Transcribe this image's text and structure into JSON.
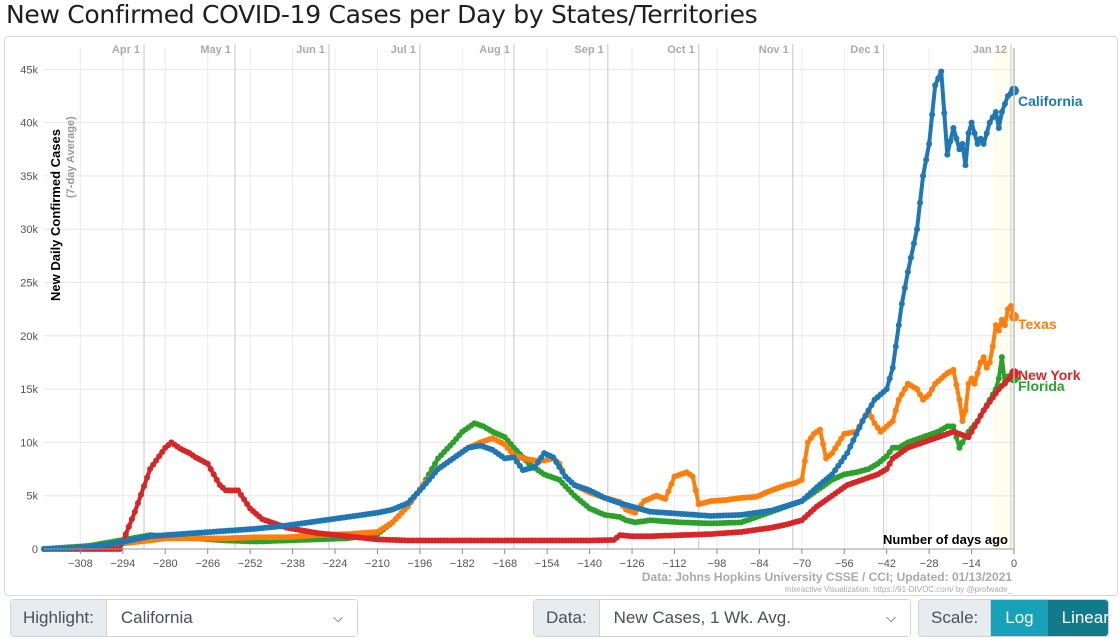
{
  "title": "New Confirmed COVID-19 Cases per Day by States/Territories",
  "colors": {
    "California": "#1f77b4",
    "Texas": "#ff7f0e",
    "New York": "#d62728",
    "Florida": "#2ca02c"
  },
  "chart_data": {
    "type": "line",
    "ylabel": "New Daily Confirmed Cases",
    "ylabel_sub": "(7-day Average)",
    "xlabel": "Number of days ago",
    "xlim": [
      -320,
      0
    ],
    "ylim": [
      0,
      47000
    ],
    "xticks": [
      -308,
      -294,
      -280,
      -266,
      -252,
      -238,
      -224,
      -210,
      -196,
      -182,
      -168,
      -154,
      -140,
      -126,
      -112,
      -98,
      -84,
      -70,
      -56,
      -42,
      -28,
      -14,
      0
    ],
    "yticks": [
      0,
      5000,
      10000,
      15000,
      20000,
      25000,
      30000,
      35000,
      40000,
      45000
    ],
    "ytick_labels": [
      "0",
      "5k",
      "10k",
      "15k",
      "20k",
      "25k",
      "30k",
      "35k",
      "40k",
      "45k"
    ],
    "month_markers": [
      {
        "label": "Apr 1",
        "day": -287
      },
      {
        "label": "May 1",
        "day": -257
      },
      {
        "label": "Jun 1",
        "day": -226
      },
      {
        "label": "Jul 1",
        "day": -196
      },
      {
        "label": "Aug 1",
        "day": -165
      },
      {
        "label": "Sep 1",
        "day": -134
      },
      {
        "label": "Oct 1",
        "day": -104
      },
      {
        "label": "Nov 1",
        "day": -73
      },
      {
        "label": "Dec 1",
        "day": -43
      },
      {
        "label": "Jan 12",
        "day": -1
      }
    ],
    "grid": true,
    "legend": "end-of-line labels",
    "series": [
      {
        "name": "California",
        "x": [
          -320,
          -305,
          -295,
          -285,
          -280,
          -270,
          -260,
          -250,
          -240,
          -230,
          -220,
          -210,
          -205,
          -200,
          -195,
          -190,
          -185,
          -180,
          -176,
          -172,
          -168,
          -165,
          -162,
          -158,
          -155,
          -152,
          -150,
          -148,
          -145,
          -140,
          -135,
          -130,
          -125,
          -120,
          -110,
          -100,
          -90,
          -80,
          -70,
          -65,
          -60,
          -55,
          -50,
          -46,
          -42,
          -40,
          -37,
          -35,
          -32,
          -30,
          -28,
          -26,
          -24,
          -22,
          -20,
          -18,
          -17,
          -16,
          -15,
          -14,
          -13,
          -12,
          -11,
          -10,
          -8,
          -7,
          -6,
          -5,
          -4,
          -2,
          0
        ],
        "y": [
          0,
          200,
          600,
          1200,
          1300,
          1500,
          1700,
          1900,
          2200,
          2600,
          3000,
          3400,
          3700,
          4300,
          5800,
          7500,
          8500,
          9500,
          9700,
          9300,
          8500,
          8600,
          7400,
          7700,
          9000,
          8600,
          7700,
          6800,
          6000,
          5500,
          4800,
          4300,
          3900,
          3500,
          3300,
          3100,
          3200,
          3600,
          4500,
          5800,
          7000,
          9000,
          12000,
          14000,
          15000,
          17000,
          23000,
          26000,
          30000,
          35000,
          38000,
          43500,
          44800,
          37000,
          39500,
          37500,
          38000,
          36000,
          39000,
          40000,
          39000,
          38000,
          38500,
          38000,
          40000,
          40500,
          41000,
          39500,
          41000,
          42500,
          43000
        ]
      },
      {
        "name": "Texas",
        "x": [
          -320,
          -305,
          -295,
          -285,
          -280,
          -270,
          -260,
          -250,
          -240,
          -230,
          -220,
          -210,
          -205,
          -200,
          -195,
          -190,
          -185,
          -180,
          -176,
          -172,
          -168,
          -165,
          -162,
          -158,
          -155,
          -152,
          -150,
          -148,
          -145,
          -140,
          -135,
          -130,
          -128,
          -125,
          -122,
          -118,
          -115,
          -112,
          -108,
          -106,
          -104,
          -100,
          -95,
          -90,
          -85,
          -80,
          -75,
          -72,
          -70,
          -68,
          -66,
          -64,
          -62,
          -60,
          -56,
          -52,
          -50,
          -48,
          -46,
          -44,
          -42,
          -40,
          -38,
          -35,
          -32,
          -30,
          -28,
          -26,
          -24,
          -22,
          -20,
          -18,
          -17,
          -16,
          -15,
          -14,
          -13,
          -12,
          -11,
          -10,
          -9,
          -8,
          -7,
          -6,
          -5,
          -4,
          -3,
          -2,
          -1,
          0
        ],
        "y": [
          0,
          200,
          500,
          800,
          1000,
          1000,
          1000,
          1100,
          1100,
          1300,
          1400,
          1600,
          2500,
          4000,
          6000,
          7500,
          8500,
          9500,
          10000,
          10400,
          9800,
          8800,
          8500,
          8300,
          8300,
          8500,
          8000,
          6800,
          6000,
          5300,
          4800,
          4400,
          3700,
          3400,
          4500,
          5000,
          4700,
          6800,
          7200,
          6800,
          4200,
          4500,
          4600,
          4800,
          4900,
          5500,
          6000,
          6200,
          6500,
          10000,
          10800,
          11200,
          8500,
          9000,
          10800,
          11000,
          12000,
          13000,
          11800,
          11000,
          11500,
          12000,
          14000,
          15500,
          15000,
          14000,
          14500,
          15500,
          16000,
          16500,
          16800,
          14000,
          12000,
          13000,
          15500,
          16000,
          15500,
          16500,
          17500,
          18000,
          17000,
          17500,
          19000,
          21000,
          20500,
          21500,
          21000,
          22500,
          22800,
          21800
        ]
      },
      {
        "name": "New York",
        "x": [
          -320,
          -305,
          -300,
          -295,
          -290,
          -285,
          -280,
          -278,
          -275,
          -272,
          -270,
          -266,
          -262,
          -260,
          -256,
          -252,
          -248,
          -244,
          -240,
          -230,
          -220,
          -210,
          -200,
          -190,
          -180,
          -170,
          -160,
          -150,
          -140,
          -132,
          -130,
          -126,
          -120,
          -110,
          -100,
          -95,
          -90,
          -85,
          -80,
          -75,
          -70,
          -65,
          -60,
          -55,
          -50,
          -45,
          -42,
          -40,
          -35,
          -30,
          -25,
          -20,
          -15,
          -10,
          -5,
          0
        ],
        "y": [
          0,
          0,
          0,
          0,
          3500,
          7500,
          9500,
          10000,
          9400,
          9000,
          8600,
          8000,
          6000,
          5500,
          5500,
          3800,
          2800,
          2400,
          2000,
          1500,
          1200,
          900,
          800,
          800,
          800,
          800,
          800,
          800,
          800,
          850,
          1300,
          1200,
          1200,
          1300,
          1400,
          1500,
          1600,
          1800,
          2000,
          2300,
          2700,
          4000,
          5000,
          6000,
          6500,
          7000,
          7500,
          8500,
          9500,
          10000,
          10500,
          11000,
          10500,
          13000,
          15000,
          16500
        ]
      },
      {
        "name": "Florida",
        "x": [
          -320,
          -305,
          -295,
          -285,
          -280,
          -270,
          -260,
          -250,
          -240,
          -230,
          -220,
          -210,
          -205,
          -200,
          -195,
          -190,
          -185,
          -182,
          -178,
          -175,
          -172,
          -168,
          -165,
          -160,
          -155,
          -150,
          -145,
          -140,
          -135,
          -130,
          -128,
          -125,
          -120,
          -110,
          -100,
          -90,
          -85,
          -80,
          -75,
          -72,
          -70,
          -65,
          -60,
          -56,
          -52,
          -48,
          -45,
          -42,
          -40,
          -38,
          -35,
          -30,
          -25,
          -22,
          -20,
          -18,
          -17,
          -15,
          -12,
          -10,
          -8,
          -6,
          -5,
          -4,
          -3,
          -2,
          0
        ],
        "y": [
          0,
          300,
          800,
          1300,
          1200,
          1000,
          800,
          700,
          800,
          900,
          1000,
          1400,
          2500,
          4000,
          6000,
          8500,
          10000,
          11000,
          11800,
          11500,
          11000,
          10500,
          9500,
          8000,
          7000,
          6500,
          5000,
          3800,
          3200,
          3000,
          2700,
          2500,
          2700,
          2500,
          2400,
          2500,
          3000,
          3500,
          4000,
          4300,
          4500,
          5500,
          6500,
          7000,
          7200,
          7500,
          8000,
          8700,
          9500,
          9500,
          10000,
          10500,
          11000,
          11500,
          11500,
          9500,
          10000,
          11000,
          12000,
          13000,
          14000,
          15000,
          16000,
          18000,
          15500,
          16200,
          16000
        ]
      }
    ]
  },
  "annotations": {
    "days_ago": "Number of days ago",
    "source": "Data: Johns Hopkins University CSSE / CCI; Updated: 01/13/2021",
    "credit": "Interactive Visualization: https://91-DIVOC.com/ by @profwade_"
  },
  "controls": {
    "highlight_label": "Highlight:",
    "highlight_value": "California",
    "data_label": "Data:",
    "data_value": "New Cases, 1 Wk. Avg.",
    "scale_label": "Scale:",
    "scale_log": "Log",
    "scale_linear": "Linear",
    "active_button_color": "#117a8b",
    "inactive_button_color": "#17a2b8"
  }
}
